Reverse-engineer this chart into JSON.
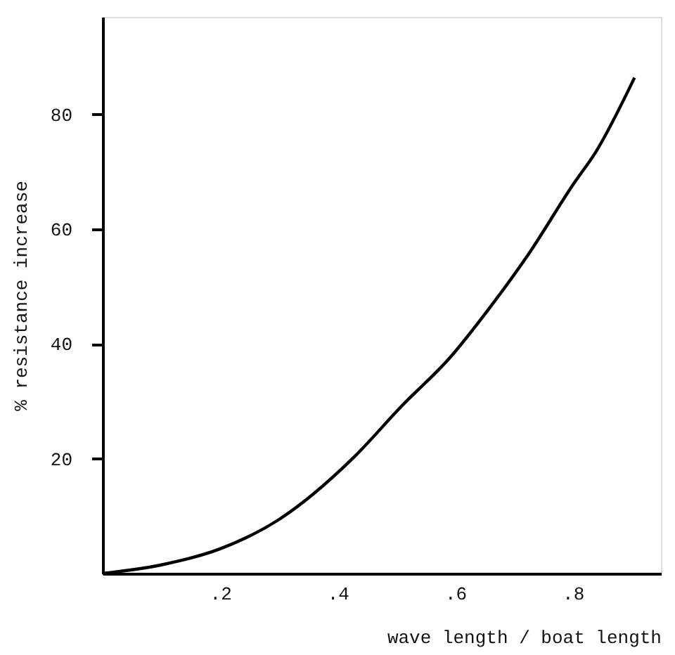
{
  "chart_data": {
    "type": "line",
    "xlabel": "wave length / boat length",
    "ylabel": "% resistance increase",
    "x": [
      0,
      0.1,
      0.2,
      0.3,
      0.425,
      0.51,
      0.59,
      0.66,
      0.725,
      0.8,
      0.84,
      0.905
    ],
    "series": [
      {
        "color": "#000000",
        "values": [
          0,
          1.5,
          4.3,
          9.4,
          20,
          29.3,
          37.5,
          46.5,
          55.7,
          67.7,
          73.6,
          86.4
        ]
      }
    ],
    "xlim": [
      0,
      0.95
    ],
    "ylim": [
      0,
      97
    ],
    "xticks": [
      {
        "value": 0.2,
        "label": ".2"
      },
      {
        "value": 0.4,
        "label": ".4"
      },
      {
        "value": 0.6,
        "label": ".6"
      },
      {
        "value": 0.8,
        "label": ".8"
      }
    ],
    "yticks": [
      20,
      40,
      60,
      80
    ],
    "grid": false,
    "marker": "none",
    "line_style": "solid"
  }
}
